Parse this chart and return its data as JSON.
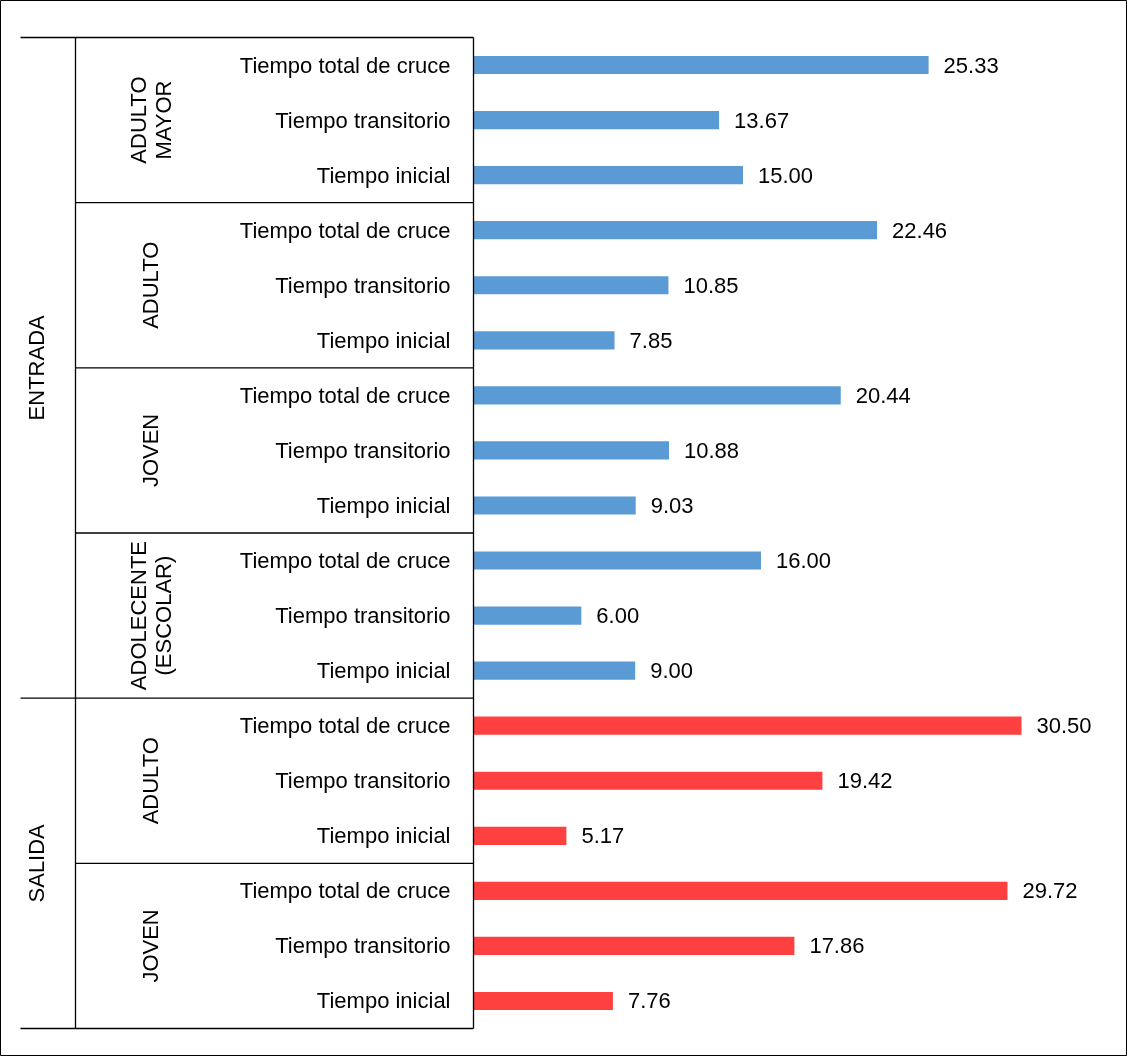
{
  "chart_data": {
    "type": "bar",
    "orientation": "horizontal",
    "categories": [
      "Tiempo total de cruce",
      "Tiempo transitorio",
      "Tiempo inicial",
      "Tiempo total de cruce",
      "Tiempo transitorio",
      "Tiempo inicial",
      "Tiempo total de cruce",
      "Tiempo transitorio",
      "Tiempo inicial",
      "Tiempo total de cruce",
      "Tiempo transitorio",
      "Tiempo inicial",
      "Tiempo total de cruce",
      "Tiempo transitorio",
      "Tiempo inicial",
      "Tiempo total de cruce",
      "Tiempo transitorio",
      "Tiempo inicial"
    ],
    "values": [
      25.33,
      13.67,
      15.0,
      22.46,
      10.85,
      7.85,
      20.44,
      10.88,
      9.03,
      16.0,
      6.0,
      9.0,
      30.5,
      19.42,
      5.17,
      29.72,
      17.86,
      7.76
    ],
    "value_labels": [
      "25.33",
      "13.67",
      "15.00",
      "22.46",
      "10.85",
      "7.85",
      "20.44",
      "10.88",
      "9.03",
      "16.00",
      "6.00",
      "9.00",
      "30.50",
      "19.42",
      "5.17",
      "29.72",
      "17.86",
      "7.76"
    ],
    "colors": [
      "#5b9bd5",
      "#5b9bd5",
      "#5b9bd5",
      "#5b9bd5",
      "#5b9bd5",
      "#5b9bd5",
      "#5b9bd5",
      "#5b9bd5",
      "#5b9bd5",
      "#5b9bd5",
      "#5b9bd5",
      "#5b9bd5",
      "#ff4040",
      "#ff4040",
      "#ff4040",
      "#ff4040",
      "#ff4040",
      "#ff4040"
    ],
    "annotations": [
      "ENTRADA",
      "ADULTO MAYOR",
      "ADULTO",
      "JOVEN",
      "ADOLECENTE (ESCOLAR)",
      "SALIDA",
      "ADULTO",
      "JOVEN"
    ],
    "grid": false,
    "tick_labels": false
  }
}
